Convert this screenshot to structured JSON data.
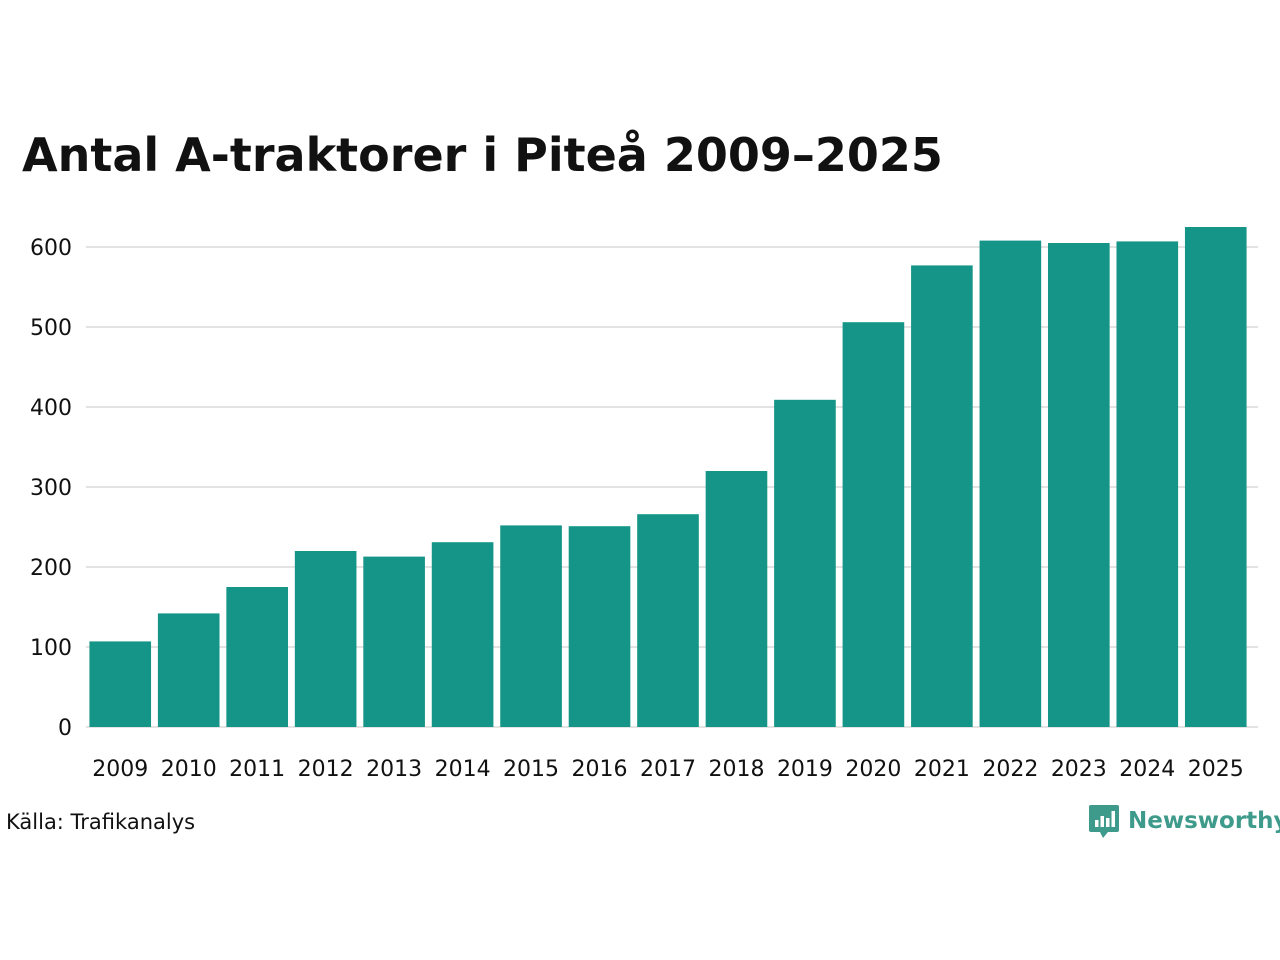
{
  "chart_data": {
    "type": "bar",
    "title": "Antal A-traktorer i Piteå 2009–2025",
    "categories": [
      "2009",
      "2010",
      "2011",
      "2012",
      "2013",
      "2014",
      "2015",
      "2016",
      "2017",
      "2018",
      "2019",
      "2020",
      "2021",
      "2022",
      "2023",
      "2024",
      "2025"
    ],
    "values": [
      107,
      142,
      175,
      220,
      213,
      231,
      252,
      251,
      266,
      320,
      409,
      506,
      577,
      608,
      605,
      607,
      625
    ],
    "ylim": [
      0,
      650
    ],
    "yticks": [
      0,
      100,
      200,
      300,
      400,
      500,
      600
    ],
    "xlabel": "",
    "ylabel": "",
    "bar_color": "#159587",
    "grid": true
  },
  "source": "Källa: Trafikanalys",
  "brand": "Newsworthy",
  "brand_color": "#3e9a8a"
}
